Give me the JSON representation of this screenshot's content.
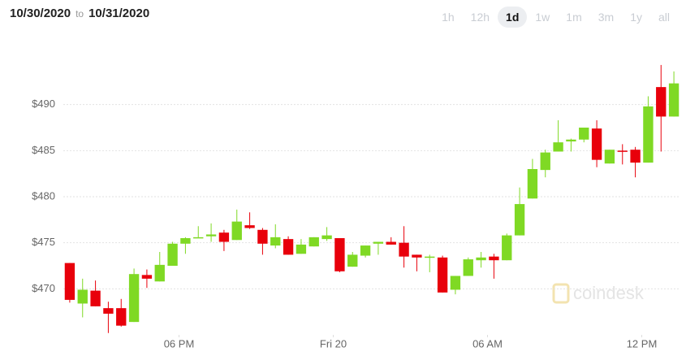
{
  "header": {
    "from": "10/30/2020",
    "to_label": "to",
    "to": "10/31/2020"
  },
  "range_buttons": [
    "1h",
    "12h",
    "1d",
    "1w",
    "1m",
    "3m",
    "1y",
    "all"
  ],
  "active_button": "1d",
  "watermark": "coindesk",
  "chart_data": {
    "type": "candlestick",
    "x": [
      13.75,
      14.25,
      14.75,
      15.25,
      15.75,
      16.25,
      16.75,
      17.25,
      17.75,
      18.25,
      18.75,
      19.25,
      19.75,
      20.25,
      20.75,
      21.25,
      21.75,
      22.25,
      22.75,
      23.25,
      23.75,
      24.25,
      24.75,
      25.25,
      25.75,
      26.25,
      26.75,
      27.25,
      27.75,
      28.25,
      28.75,
      29.25,
      29.75,
      30.25,
      30.75,
      31.25,
      31.75,
      32.25,
      32.75,
      33.25,
      33.75,
      34.25,
      34.75,
      35.25,
      35.75,
      36.25,
      36.75,
      37.25
    ],
    "open": [
      472.8,
      468.4,
      469.8,
      467.9,
      467.9,
      466.4,
      471.5,
      470.8,
      472.5,
      474.9,
      475.5,
      475.7,
      476.1,
      475.3,
      476.9,
      476.4,
      474.7,
      475.4,
      473.8,
      474.6,
      475.4,
      475.5,
      472.4,
      473.6,
      474.9,
      475.1,
      475.0,
      473.7,
      473.4,
      473.4,
      469.9,
      471.4,
      473.1,
      473.5,
      473.1,
      475.8,
      479.8,
      482.9,
      484.9,
      486.0,
      486.2,
      487.4,
      483.6,
      485.0,
      485.1,
      483.7,
      491.9,
      488.7
    ],
    "high": [
      472.8,
      471.1,
      470.9,
      468.6,
      468.9,
      472.2,
      472.1,
      474.0,
      475.1,
      475.6,
      476.8,
      477.1,
      476.4,
      478.6,
      478.3,
      476.6,
      477.0,
      475.7,
      475.4,
      475.6,
      476.7,
      475.5,
      474.0,
      474.7,
      475.1,
      475.6,
      476.8,
      473.7,
      473.7,
      473.6,
      471.4,
      473.4,
      474.0,
      473.8,
      476.0,
      481.0,
      484.1,
      485.1,
      488.3,
      486.3,
      487.5,
      488.3,
      485.1,
      485.7,
      485.4,
      490.9,
      494.3,
      493.6
    ],
    "low": [
      468.5,
      466.9,
      468.1,
      465.2,
      465.9,
      466.4,
      470.1,
      470.8,
      472.5,
      473.8,
      475.5,
      475.1,
      474.1,
      475.3,
      476.5,
      473.7,
      474.4,
      473.7,
      473.8,
      474.6,
      475.2,
      471.8,
      472.4,
      473.4,
      473.7,
      474.8,
      472.3,
      471.9,
      471.8,
      469.6,
      469.4,
      471.4,
      472.3,
      471.1,
      473.1,
      475.8,
      479.8,
      482.1,
      484.9,
      484.9,
      485.9,
      483.2,
      483.6,
      483.5,
      482.1,
      483.7,
      484.9,
      488.7
    ],
    "close": [
      468.8,
      469.9,
      468.1,
      467.3,
      466.0,
      471.6,
      471.1,
      472.6,
      474.9,
      475.5,
      475.6,
      475.9,
      475.1,
      477.3,
      476.6,
      474.9,
      475.6,
      473.7,
      474.8,
      475.6,
      475.8,
      471.9,
      473.7,
      474.7,
      475.1,
      474.8,
      473.5,
      473.4,
      473.5,
      469.6,
      471.4,
      473.2,
      473.4,
      473.1,
      475.8,
      479.2,
      483.0,
      484.8,
      485.9,
      486.2,
      487.5,
      484.0,
      485.1,
      484.9,
      483.7,
      489.8,
      488.7,
      492.3
    ],
    "up_color": "#7fd924",
    "down_color": "#e8000b",
    "xlim": [
      13.5,
      37.5
    ],
    "xticks": [
      {
        "value": 18,
        "label": "06 PM"
      },
      {
        "value": 24,
        "label": "Fri 20"
      },
      {
        "value": 30,
        "label": "06 AM"
      },
      {
        "value": 36,
        "label": "12 PM"
      }
    ],
    "ylim": [
      465,
      495
    ],
    "yticks": [
      {
        "value": 470,
        "label": "$470"
      },
      {
        "value": 475,
        "label": "$475"
      },
      {
        "value": 480,
        "label": "$480"
      },
      {
        "value": 485,
        "label": "$485"
      },
      {
        "value": 490,
        "label": "$490"
      }
    ],
    "grid": true
  }
}
